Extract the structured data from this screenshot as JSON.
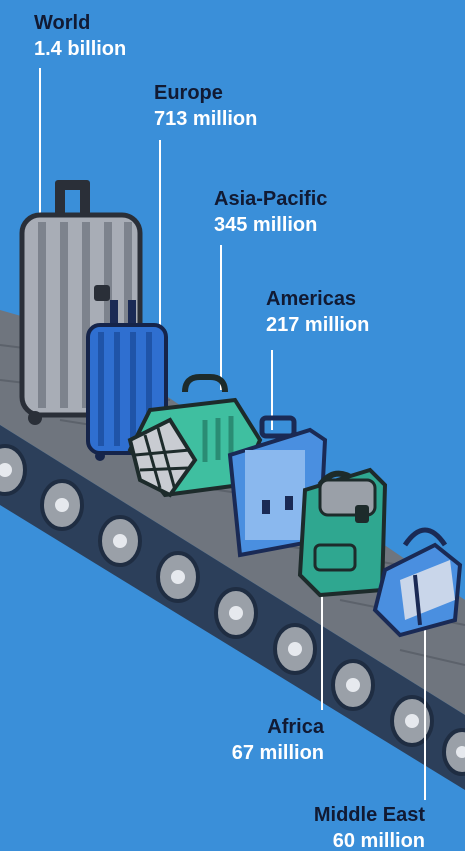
{
  "chart_data": {
    "type": "bar",
    "categories": [
      "World",
      "Europe",
      "Asia-Pacific",
      "Americas",
      "Africa",
      "Middle East"
    ],
    "value_labels": [
      "1.4 billion",
      "713 million",
      "345 million",
      "217 million",
      "67 million",
      "60 million"
    ],
    "values": [
      1400,
      713,
      345,
      217,
      67,
      60
    ],
    "units": "million",
    "title": "",
    "xlabel": "",
    "ylabel": ""
  },
  "colors": {
    "background": "#3a8fd9",
    "label_dark": "#111a33",
    "label_light": "#ffffff",
    "belt_top": "#6f757e",
    "belt_side": "#2c3f5a",
    "roller": "#9aa0a8"
  },
  "icons": [
    "suitcase-icon",
    "carry-on-icon",
    "pet-carrier-icon",
    "briefcase-icon",
    "backpack-icon",
    "handbag-icon"
  ]
}
